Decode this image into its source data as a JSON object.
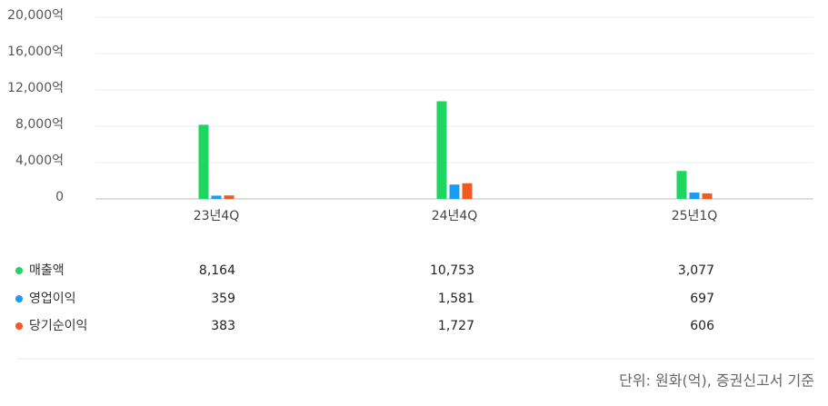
{
  "chart_data": {
    "type": "bar",
    "categories": [
      "23년4Q",
      "24년4Q",
      "25년1Q"
    ],
    "series": [
      {
        "name": "매출액",
        "color": "#1ed760",
        "values": [
          8164,
          10753,
          3077
        ],
        "value_labels": [
          "8,164",
          "10,753",
          "3,077"
        ]
      },
      {
        "name": "영업이익",
        "color": "#1a9cf5",
        "values": [
          359,
          1581,
          697
        ],
        "value_labels": [
          "359",
          "1,581",
          "697"
        ]
      },
      {
        "name": "당기순이익",
        "color": "#f25a22",
        "values": [
          383,
          1727,
          606
        ],
        "value_labels": [
          "383",
          "1,727",
          "606"
        ]
      }
    ],
    "ylim": [
      0,
      20000
    ],
    "yticks": [
      0,
      {
        "value": 4000,
        "label": "4,000억"
      },
      {
        "value": 8000,
        "label": "8,000억"
      },
      {
        "value": 12000,
        "label": "12,000억"
      },
      {
        "value": 16000,
        "label": "16,000억"
      },
      {
        "value": 20000,
        "label": "20,000억"
      }
    ],
    "grid": true,
    "note": "단위: 원화(억), 증권신고서 기준"
  }
}
